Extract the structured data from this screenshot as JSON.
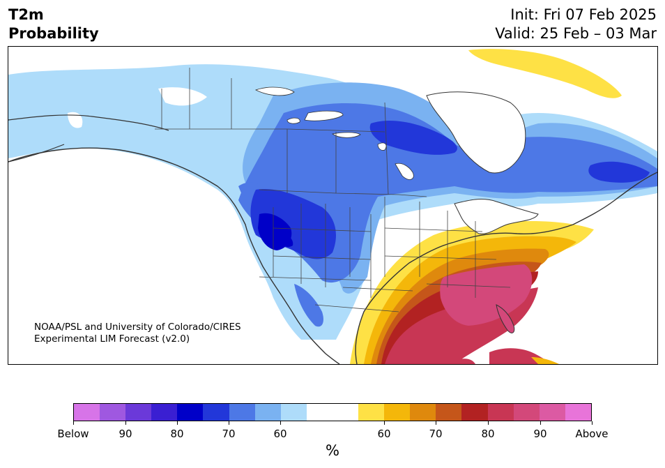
{
  "header": {
    "title_line1": "T2m",
    "title_line2": "Probability",
    "init_text": "Init: Fri 07 Feb 2025",
    "valid_text": "Valid: 25 Feb – 03 Mar"
  },
  "map": {
    "credit_line1": "NOAA/PSL and University of Colorado/CIRES",
    "credit_line2": "Experimental LIM Forecast (v2.0)",
    "below_regions": "western and central North America, northern Canada",
    "above_regions": "southeastern United States, Gulf coast, Greenland, Cuba"
  },
  "colorbar": {
    "colors": [
      "#d774e8",
      "#9f58e0",
      "#6b39d9",
      "#3a1fd2",
      "#0000c8",
      "#2237d9",
      "#4d78e6",
      "#7ab2f1",
      "#aedcfa",
      "#ffffff",
      "#ffffff",
      "#fee145",
      "#f4b70a",
      "#df890d",
      "#c5561a",
      "#b22222",
      "#c83654",
      "#d3487a",
      "#dc5aa3",
      "#e874d9"
    ],
    "ticks": [
      "Below",
      "90",
      "80",
      "70",
      "60",
      "60",
      "70",
      "80",
      "90",
      "Above"
    ],
    "unit": "%"
  }
}
